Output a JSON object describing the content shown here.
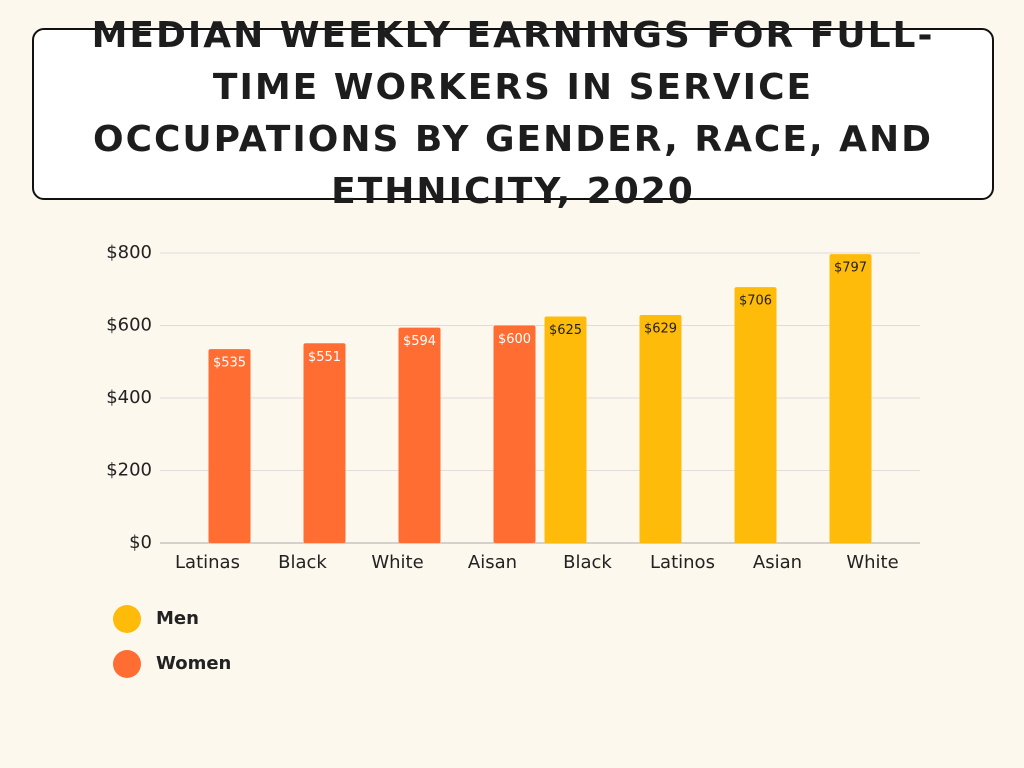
{
  "chart_data": {
    "type": "bar",
    "title": "Median Weekly Earnings for Full-Time Workers in Service Occupations by Gender, Race, and Ethnicity, 2020",
    "categories": [
      "Latinas",
      "Black",
      "White",
      "Aisan",
      "Black",
      "Latinos",
      "Asian",
      "White"
    ],
    "series": [
      {
        "name": "Men",
        "color": "#ffbb0a",
        "values": [
          null,
          null,
          null,
          null,
          625,
          629,
          706,
          797
        ],
        "value_labels": [
          null,
          null,
          null,
          null,
          "$625",
          "$629",
          "$706",
          "$797"
        ]
      },
      {
        "name": "Women",
        "color": "#ff6d33",
        "values": [
          535,
          551,
          594,
          600,
          null,
          null,
          null,
          null
        ],
        "value_labels": [
          "$535",
          "$551",
          "$594",
          "$600",
          null,
          null,
          null,
          null
        ]
      }
    ],
    "ylim": [
      0,
      800
    ],
    "yticks": [
      {
        "value": 0,
        "label": "$0"
      },
      {
        "value": 200,
        "label": "$200"
      },
      {
        "value": 400,
        "label": "$400"
      },
      {
        "value": 600,
        "label": "$600"
      },
      {
        "value": 800,
        "label": "$800"
      }
    ],
    "grid": true
  }
}
